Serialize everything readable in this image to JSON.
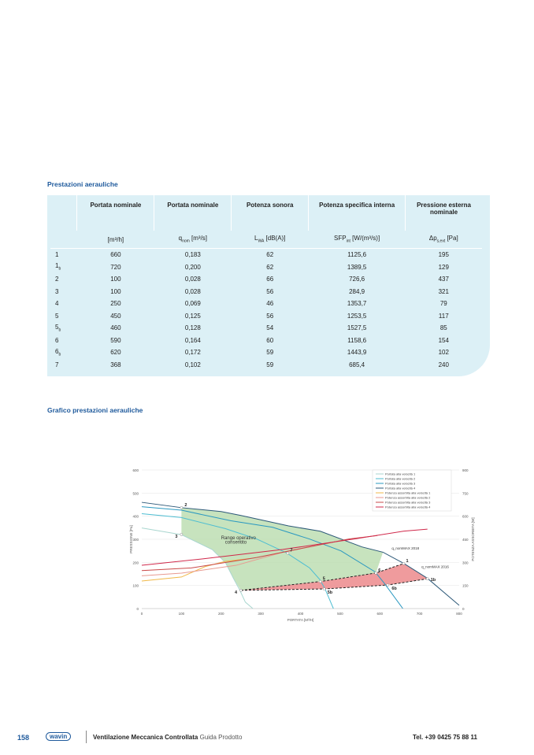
{
  "section1": {
    "title": "Prestazioni aerauliche"
  },
  "table": {
    "headers": [
      "",
      "Portata nominale",
      "Portata nominale",
      "Potenza sonora",
      "Potenza specifica interna",
      "Pressione esterna nominale"
    ],
    "units": [
      "",
      "[m³/h]",
      "q_nom [m³/s]",
      "L_WA [dB(A)]",
      "SFP_int [W/(m³/s)]",
      "Δp_s,ext [Pa]"
    ],
    "rows": [
      [
        "1",
        "660",
        "0,183",
        "62",
        "1125,6",
        "195"
      ],
      [
        "1b",
        "720",
        "0,200",
        "62",
        "1389,5",
        "129"
      ],
      [
        "2",
        "100",
        "0,028",
        "66",
        "726,6",
        "437"
      ],
      [
        "3",
        "100",
        "0,028",
        "56",
        "284,9",
        "321"
      ],
      [
        "4",
        "250",
        "0,069",
        "46",
        "1353,7",
        "79"
      ],
      [
        "5",
        "450",
        "0,125",
        "56",
        "1253,5",
        "117"
      ],
      [
        "5b",
        "460",
        "0,128",
        "54",
        "1527,5",
        "85"
      ],
      [
        "6",
        "590",
        "0,164",
        "60",
        "1158,6",
        "154"
      ],
      [
        "6b",
        "620",
        "0,172",
        "59",
        "1443,9",
        "102"
      ],
      [
        "7",
        "368",
        "0,102",
        "59",
        "685,4",
        "240"
      ]
    ]
  },
  "section2": {
    "title": "Grafico prestazioni aerauliche"
  },
  "chart_data": {
    "type": "line",
    "xlabel": "PORTATA [M³/H]",
    "ylabel": "PRESSIONE [Pa]",
    "y2label": "POTENZA ASSORBITA [W]",
    "xlim": [
      0,
      800
    ],
    "ylim": [
      0,
      600
    ],
    "y2lim": [
      0,
      900
    ],
    "xticks": [
      0,
      100,
      200,
      300,
      400,
      500,
      600,
      700,
      800
    ],
    "yticks": [
      0,
      100,
      200,
      300,
      400,
      500,
      600
    ],
    "y2ticks": [
      0,
      150,
      300,
      450,
      600,
      750,
      900
    ],
    "legend_position": "top-right",
    "series": [
      {
        "name": "Portata alla velocità 1",
        "axis": "left",
        "color": "#a9d6cf",
        "points": [
          [
            0,
            349
          ],
          [
            100,
            320
          ],
          [
            178,
            255
          ],
          [
            211,
            199
          ],
          [
            231,
            131
          ],
          [
            247,
            80
          ],
          [
            261,
            28
          ],
          [
            280,
            0
          ]
        ]
      },
      {
        "name": "Portata alla velocità 2",
        "axis": "left",
        "color": "#4dbdd2",
        "points": [
          [
            0,
            411
          ],
          [
            100,
            394
          ],
          [
            211,
            346
          ],
          [
            290,
            301
          ],
          [
            364,
            242
          ],
          [
            423,
            176
          ],
          [
            449,
            125
          ],
          [
            462,
            85
          ],
          [
            483,
            0
          ]
        ]
      },
      {
        "name": "Portata alla velocità 3",
        "axis": "left",
        "color": "#2a98c0",
        "points": [
          [
            0,
            441
          ],
          [
            100,
            426
          ],
          [
            225,
            380
          ],
          [
            330,
            352
          ],
          [
            423,
            301
          ],
          [
            502,
            250
          ],
          [
            588,
            159
          ],
          [
            612,
            108
          ],
          [
            658,
            0
          ]
        ]
      },
      {
        "name": "Portata alla velocità 4",
        "axis": "left",
        "color": "#2c5878",
        "points": [
          [
            0,
            460
          ],
          [
            100,
            437
          ],
          [
            200,
            420
          ],
          [
            250,
            403
          ],
          [
            370,
            358
          ],
          [
            450,
            335
          ],
          [
            555,
            267
          ],
          [
            608,
            244
          ],
          [
            661,
            195
          ],
          [
            720,
            131
          ],
          [
            800,
            14
          ]
        ]
      },
      {
        "name": "Potenza assorbita alla velocità 1",
        "axis": "right",
        "color": "#f0b848",
        "points": [
          [
            0,
            179
          ],
          [
            100,
            205
          ],
          [
            160,
            273
          ],
          [
            211,
            307
          ],
          [
            270,
            324
          ]
        ]
      },
      {
        "name": "Potenza assorbita alla velocità 2",
        "axis": "right",
        "color": "#e89a90",
        "points": [
          [
            0,
            213
          ],
          [
            100,
            230
          ],
          [
            238,
            281
          ],
          [
            357,
            367
          ],
          [
            437,
            409
          ]
        ]
      },
      {
        "name": "Potenza assorbita alla velocità 3",
        "axis": "right",
        "color": "#c94848",
        "points": [
          [
            0,
            247
          ],
          [
            125,
            264
          ],
          [
            290,
            332
          ],
          [
            423,
            401
          ],
          [
            522,
            452
          ],
          [
            594,
            474
          ]
        ]
      },
      {
        "name": "Potenza assorbita alla velocità 4",
        "axis": "right",
        "color": "#d0284a",
        "points": [
          [
            0,
            281
          ],
          [
            158,
            324
          ],
          [
            356,
            384
          ],
          [
            535,
            452
          ],
          [
            661,
            503
          ],
          [
            720,
            516
          ]
        ]
      }
    ],
    "points": [
      {
        "label": "1",
        "x": 660,
        "y": 195
      },
      {
        "label": "1b",
        "x": 720,
        "y": 129
      },
      {
        "label": "2",
        "x": 100,
        "y": 437
      },
      {
        "label": "3",
        "x": 100,
        "y": 321
      },
      {
        "label": "4",
        "x": 250,
        "y": 79
      },
      {
        "label": "5",
        "x": 450,
        "y": 117
      },
      {
        "label": "5b",
        "x": 460,
        "y": 85
      },
      {
        "label": "6",
        "x": 590,
        "y": 154
      },
      {
        "label": "6b",
        "x": 620,
        "y": 102
      },
      {
        "label": "7",
        "x": 368,
        "y": 240
      }
    ],
    "annotations": {
      "range": "Range operativo consentito",
      "qmax2018": "q_nomMAX 2018",
      "qmax2016": "q_nomMAX 2016"
    }
  },
  "footer": {
    "page": "158",
    "brand": "wavin",
    "title": "Ventilazione Meccanica Controllata",
    "subtitle": "Guida Prodotto",
    "phone": "Tel. +39 0425 75 88 11"
  }
}
